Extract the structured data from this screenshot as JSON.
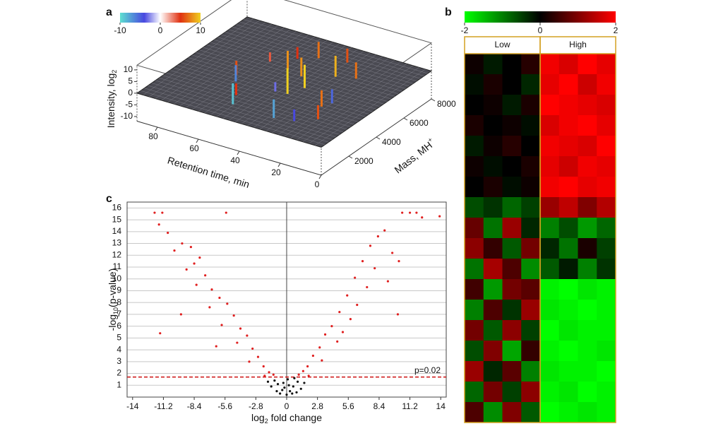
{
  "chart_data": [
    {
      "type": "surface3d",
      "panel_label": "a",
      "xlabel": "Retention time, min",
      "ylabel": "Mass, MH",
      "ylabel_sup": "+",
      "zlabel": "Intensity, log",
      "zlabel_sub": "2",
      "xlim": [
        0,
        90
      ],
      "xticks": [
        0,
        20,
        40,
        60,
        80
      ],
      "ylim": [
        0,
        8000
      ],
      "yticks": [
        2000,
        4000,
        6000,
        8000
      ],
      "zlim": [
        -12,
        12
      ],
      "zticks": [
        -10,
        -5,
        0,
        5,
        10
      ],
      "colorbar_lim": [
        -10,
        10
      ],
      "colorbar_ticks": [
        -10,
        0,
        10
      ],
      "colors": [
        "#5de0d0",
        "#4848e0",
        "#ffffff",
        "#e03010",
        "#f0d020"
      ],
      "x": [
        35,
        50,
        20,
        65,
        40,
        30,
        55,
        45,
        25,
        60,
        15,
        70,
        38,
        52,
        28,
        42,
        62,
        33,
        48,
        22
      ],
      "y": [
        4000,
        5000,
        3000,
        3500,
        2500,
        5500,
        2000,
        6500,
        4500,
        5200,
        2000,
        4200,
        3200,
        6000,
        2200,
        4800,
        2800,
        6800,
        3800,
        5800
      ],
      "z": [
        10,
        8,
        7,
        6,
        -8,
        9,
        5,
        7,
        -6,
        4,
        6,
        -7,
        11,
        5,
        -5,
        8,
        -9,
        6,
        -4,
        7
      ]
    },
    {
      "type": "heatmap",
      "panel_label": "b",
      "groups": [
        "Low",
        "High"
      ],
      "colorbar_lim": [
        -2,
        2
      ],
      "colorbar_ticks": [
        -2,
        0,
        2
      ],
      "values": [
        [
          0.1,
          -0.2,
          0.0,
          0.3,
          1.9,
          1.7,
          2,
          1.8
        ],
        [
          -0.1,
          0.2,
          0,
          -0.3,
          1.8,
          2,
          1.6,
          1.9
        ],
        [
          0,
          0.1,
          -0.2,
          0.2,
          2,
          1.9,
          1.8,
          1.7
        ],
        [
          0.2,
          0,
          0.1,
          -0.1,
          1.7,
          1.9,
          2,
          1.8
        ],
        [
          -0.2,
          0.1,
          0.3,
          0,
          1.9,
          1.8,
          1.7,
          2
        ],
        [
          0.1,
          -0.1,
          0,
          0.2,
          1.8,
          1.6,
          1.9,
          1.8
        ],
        [
          0,
          0.2,
          -0.1,
          0.1,
          1.9,
          2,
          1.8,
          1.9
        ],
        [
          -0.6,
          -0.4,
          -0.8,
          -0.5,
          1.2,
          1.5,
          1.0,
          1.4
        ],
        [
          0.8,
          -0.9,
          1.2,
          -0.3,
          -1.0,
          -0.6,
          -1.2,
          -0.8
        ],
        [
          1.1,
          0.4,
          -0.7,
          0.9,
          -0.3,
          -0.9,
          0.2,
          -0.5
        ],
        [
          -0.9,
          1.3,
          0.6,
          -1.1,
          -0.7,
          -0.2,
          -1.0,
          -0.4
        ],
        [
          0.5,
          -1.2,
          0.9,
          0.7,
          -1.9,
          -2,
          -1.8,
          -1.9
        ],
        [
          -1.0,
          0.6,
          -0.4,
          1.2,
          -1.8,
          -1.9,
          -2,
          -1.9
        ],
        [
          0.9,
          -0.7,
          1.1,
          -0.5,
          -2,
          -1.8,
          -1.9,
          -1.9
        ],
        [
          -0.6,
          1.0,
          -1.3,
          0.4,
          -1.9,
          -2,
          -1.9,
          -1.8
        ],
        [
          1.2,
          -0.3,
          0.7,
          -1.0,
          -1.8,
          -1.9,
          -1.9,
          -2
        ],
        [
          -0.8,
          0.9,
          -0.5,
          1.1,
          -1.9,
          -1.8,
          -2,
          -1.9
        ],
        [
          0.6,
          -1.1,
          1.0,
          -0.7,
          -2,
          -1.9,
          -1.8,
          -1.9
        ]
      ]
    },
    {
      "type": "scatter",
      "panel_label": "c",
      "xlabel": "log",
      "xlabel_sub": "2",
      "xlabel_rest": " fold change",
      "ylabel": "-log",
      "ylabel_sub": "10",
      "ylabel_rest": "(p-value)",
      "xlim": [
        -14.5,
        14.5
      ],
      "xticks": [
        -14,
        -11.2,
        -8.4,
        -5.6,
        -2.8,
        0,
        2.8,
        5.6,
        8.4,
        11.2,
        14
      ],
      "ylim": [
        0,
        16.5
      ],
      "yticks": [
        1,
        2,
        3,
        4,
        5,
        6,
        7,
        8,
        9,
        10,
        11,
        12,
        13,
        14,
        15,
        16
      ],
      "grid": true,
      "threshold": 1.699,
      "threshold_label": "p=0.02",
      "threshold_color": "#cc1010",
      "series": [
        {
          "color": "#e02020",
          "x": [
            -12.0,
            -11.3,
            -5.5,
            -11.6,
            -10.8,
            -10.2,
            -9.5,
            -8.7,
            -7.9,
            -9.1,
            -8.2,
            -7.4,
            -6.8,
            -6.1,
            -7.0,
            -5.4,
            -4.8,
            -5.9,
            -4.2,
            -3.6,
            -4.5,
            -3.1,
            -2.6,
            -3.4,
            -2.1,
            -1.6,
            -1.2,
            -11.5,
            -9.6,
            -6.4,
            -2.0,
            -8.4,
            10.5,
            11.2,
            11.8,
            13.9,
            12.3,
            8.9,
            8.3,
            7.6,
            9.6,
            6.9,
            8.0,
            6.2,
            7.3,
            5.5,
            6.4,
            4.8,
            5.8,
            4.1,
            3.5,
            4.6,
            3.0,
            2.4,
            3.2,
            1.9,
            1.5,
            1.1,
            2.0,
            10.1,
            9.2,
            5.1,
            10.2
          ],
          "y": [
            15.6,
            15.6,
            15.6,
            14.6,
            13.9,
            12.4,
            13.0,
            12.7,
            11.8,
            10.8,
            9.5,
            10.3,
            9.1,
            8.4,
            7.6,
            7.9,
            6.9,
            6.1,
            5.8,
            5.2,
            4.6,
            4.1,
            3.4,
            3.0,
            2.6,
            2.1,
            1.9,
            5.4,
            7.0,
            4.3,
            1.8,
            11.3,
            15.6,
            15.6,
            15.6,
            15.3,
            15.2,
            14.1,
            13.6,
            12.8,
            12.2,
            11.5,
            10.9,
            10.1,
            9.3,
            8.6,
            7.8,
            7.2,
            6.6,
            6.0,
            5.3,
            4.7,
            4.2,
            3.5,
            3.1,
            2.6,
            2.2,
            1.9,
            1.8,
            7.0,
            9.8,
            5.5,
            11.5
          ]
        },
        {
          "color": "#111111",
          "x": [
            0,
            0.3,
            -0.4,
            0.6,
            -0.8,
            1.0,
            -1.1,
            0.2,
            -0.2,
            1.3,
            -1.4,
            0.5,
            -0.6,
            1.6,
            -1.7,
            0.9,
            -0.9,
            0.1,
            -0.3,
            0.7
          ],
          "y": [
            0.2,
            0.5,
            0.6,
            0.9,
            1.1,
            1.3,
            1.4,
            1.0,
            0.8,
            0.7,
            0.9,
            0.3,
            0.3,
            1.2,
            1.3,
            0.4,
            0.5,
            1.5,
            1.2,
            1.6
          ]
        }
      ]
    }
  ]
}
